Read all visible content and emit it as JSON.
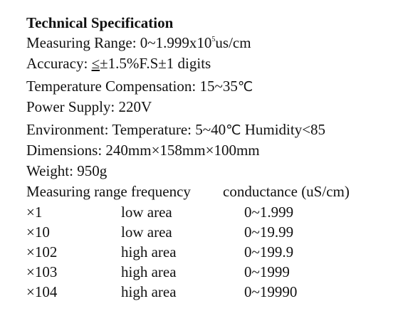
{
  "title": "Technical Specification",
  "specs": {
    "measuring_range_label": "Measuring Range: ",
    "measuring_range_value": "0~1.999x10",
    "measuring_range_exp": "5",
    "measuring_range_unit": "us/cm",
    "accuracy_label": "Accuracy: ",
    "accuracy_symbol": "≤",
    "accuracy_value": "±1.5%F.S±1 digits",
    "temp_comp_label": "Temperature Compensation: ",
    "temp_comp_value": "15~35",
    "temp_comp_unit": "℃",
    "power_label": "Power Supply: ",
    "power_value": "220V",
    "environment_label": "Environment: ",
    "environment_temp": "Temperature: 5~40",
    "environment_unit": "℃",
    "environment_humidity": " Humidity<85",
    "dimensions_label": "Dimensions: ",
    "dimensions_value": "240mm×158mm×100mm",
    "weight_label": "Weight: ",
    "weight_value": "950g"
  },
  "range_table": {
    "header_left": "Measuring range frequency",
    "header_right": "conductance (uS/cm)",
    "rows": [
      {
        "multiplier": "×1",
        "area": "low area",
        "conductance": "0~1.999"
      },
      {
        "multiplier": "×10",
        "area": "low area",
        "conductance": "0~19.99"
      },
      {
        "multiplier": "×102",
        "area": "high area",
        "conductance": "0~199.9"
      },
      {
        "multiplier": "×103",
        "area": "high area",
        "conductance": "0~1999"
      },
      {
        "multiplier": "×104",
        "area": "high area",
        "conductance": "0~19990"
      }
    ]
  }
}
